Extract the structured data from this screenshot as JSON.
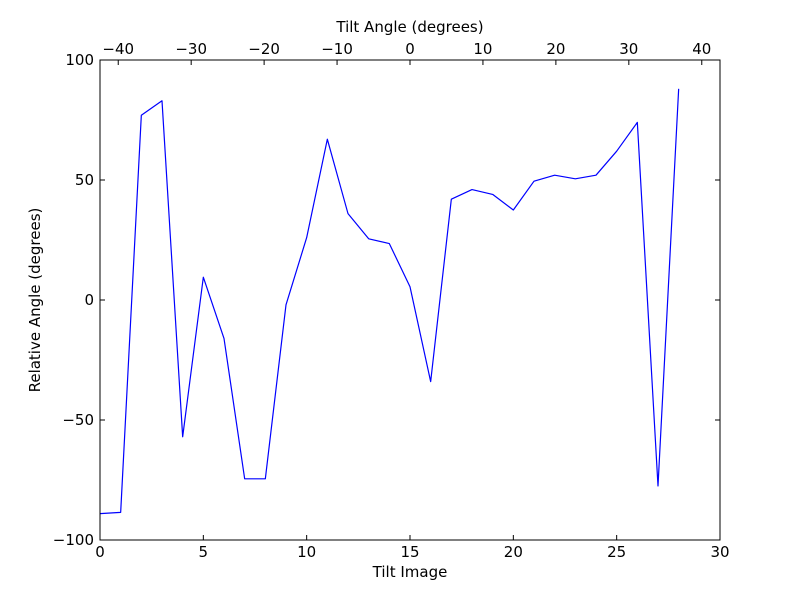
{
  "chart_data": {
    "type": "line",
    "title": "",
    "xlabel": "Tilt Image",
    "ylabel": "Relative Angle (degrees)",
    "top_xlabel": "Tilt Angle (degrees)",
    "xlim": [
      0,
      30
    ],
    "ylim": [
      -100,
      100
    ],
    "top_xlim": [
      -42.5,
      42.5
    ],
    "xticks": [
      0,
      5,
      10,
      15,
      20,
      25,
      30
    ],
    "yticks": [
      -100,
      -50,
      0,
      50,
      100
    ],
    "top_xticks": [
      -40,
      -30,
      -20,
      -10,
      0,
      10,
      20,
      30,
      40
    ],
    "xtick_labels": [
      "0",
      "5",
      "10",
      "15",
      "20",
      "25",
      "30"
    ],
    "ytick_labels": [
      "−100",
      "−50",
      "0",
      "50",
      "100"
    ],
    "top_xtick_labels": [
      "−40",
      "−30",
      "−20",
      "−10",
      "0",
      "10",
      "20",
      "30",
      "40"
    ],
    "grid": false,
    "line_color": "#0000ff",
    "series": [
      {
        "x": [
          0,
          1,
          2,
          3,
          4,
          5,
          6,
          7,
          8,
          9,
          10,
          11,
          12,
          13,
          14,
          15,
          16,
          17,
          18,
          19,
          20,
          21,
          22,
          23,
          24,
          25,
          26,
          27,
          28
        ],
        "values": [
          -89,
          -88.5,
          77,
          83,
          -57,
          9.5,
          -16,
          -74.5,
          -74.5,
          -2,
          26,
          67,
          36,
          25.5,
          23.5,
          5.5,
          -34,
          42,
          46,
          44,
          37.5,
          49.5,
          52,
          50.5,
          52,
          62,
          74,
          -77.5,
          88
        ]
      }
    ]
  }
}
